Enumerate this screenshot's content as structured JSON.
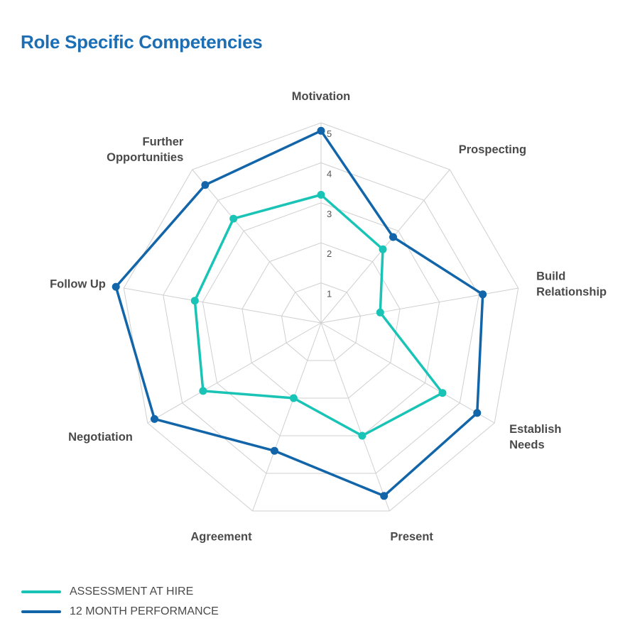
{
  "title": "Role Specific Competencies",
  "chart_data": {
    "type": "radar",
    "axes": [
      "Motivation",
      "Prospecting",
      "Build Relationship",
      "Establish Needs",
      "Present",
      "Agreement",
      "Negotiation",
      "Follow Up",
      "Further Opportunities"
    ],
    "axis_label_lines": [
      [
        "Motivation"
      ],
      [
        "Prospecting"
      ],
      [
        "Build",
        "Relationship"
      ],
      [
        "Establish",
        "Needs"
      ],
      [
        "Present"
      ],
      [
        "Agreement"
      ],
      [
        "Negotiation"
      ],
      [
        "Follow Up"
      ],
      [
        "Further",
        "Opportunities"
      ]
    ],
    "ticks": [
      "1",
      "2",
      "3",
      "4",
      "5"
    ],
    "rmax": 5,
    "grid": true,
    "legend_position": "bottom-left",
    "series": [
      {
        "name": "ASSESSMENT AT HIRE",
        "color": "#19c4b6",
        "values": [
          3.2,
          2.4,
          1.5,
          3.5,
          3.0,
          2.0,
          3.4,
          3.2,
          3.4
        ]
      },
      {
        "name": "12 MONTH PERFORMANCE",
        "color": "#1165a8",
        "values": [
          4.8,
          2.8,
          4.1,
          4.5,
          4.6,
          3.4,
          4.8,
          5.2,
          4.5
        ]
      }
    ]
  }
}
